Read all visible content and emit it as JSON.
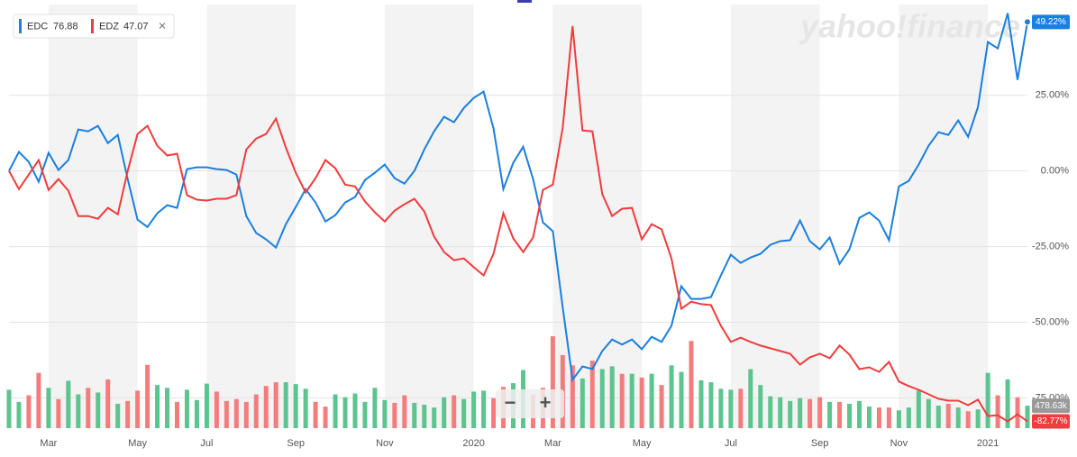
{
  "chart_data": {
    "type": "line",
    "watermark": "yahoo!finance",
    "categories": [
      null,
      null,
      null,
      null,
      "Mar",
      null,
      null,
      null,
      null,
      null,
      null,
      null,
      null,
      "May",
      null,
      null,
      null,
      null,
      null,
      null,
      "Jul",
      null,
      null,
      null,
      null,
      null,
      null,
      null,
      null,
      "Sep",
      null,
      null,
      null,
      null,
      null,
      null,
      null,
      null,
      "Nov",
      null,
      null,
      null,
      null,
      null,
      null,
      null,
      null,
      "2020",
      null,
      null,
      null,
      null,
      null,
      null,
      null,
      "Mar",
      null,
      null,
      null,
      null,
      null,
      null,
      null,
      null,
      "May",
      null,
      null,
      null,
      null,
      null,
      null,
      null,
      null,
      "Jul",
      null,
      null,
      null,
      null,
      null,
      null,
      null,
      null,
      "Sep",
      null,
      null,
      null,
      null,
      null,
      null,
      null,
      "Nov",
      null,
      null,
      null,
      null,
      null,
      null,
      null,
      null,
      "2021",
      null,
      null,
      null,
      null
    ],
    "series": [
      {
        "name": "EDC",
        "price": "76.88",
        "color": "#1a7fe0",
        "last_value_label": "49.22%",
        "values": [
          0,
          6.3,
          3.0,
          -3.6,
          6.0,
          0.3,
          3.6,
          13.7,
          13.1,
          14.9,
          9.2,
          11.9,
          -2.7,
          -16.1,
          -18.5,
          -14.0,
          -11.3,
          -12.2,
          0.6,
          1.2,
          1.2,
          0.6,
          0.3,
          -1.2,
          -14.9,
          -20.5,
          -22.6,
          -25.3,
          -17.6,
          -11.9,
          -6.0,
          -10.4,
          -16.7,
          -14.6,
          -10.4,
          -8.6,
          -3.0,
          -0.6,
          2.1,
          -2.4,
          -4.2,
          0,
          7.1,
          13.1,
          17.9,
          16.1,
          20.8,
          24.1,
          26.2,
          14.0,
          -6.0,
          2.7,
          8.0,
          -2.7,
          -17.0,
          -19.9,
          -45.2,
          -69.0,
          -64.6,
          -65.5,
          -59.5,
          -55.7,
          -57.4,
          -55.7,
          -58.9,
          -54.8,
          -56.5,
          -51.2,
          -38.1,
          -42.3,
          -42.3,
          -41.7,
          -34.5,
          -27.7,
          -30.4,
          -28.6,
          -27.4,
          -24.4,
          -23.2,
          -22.9,
          -16.4,
          -23.2,
          -25.9,
          -22.0,
          -30.7,
          -25.9,
          -15.5,
          -13.7,
          -16.4,
          -22.9,
          -5.1,
          -3.3,
          2.1,
          8.3,
          12.8,
          11.9,
          16.7,
          11.3,
          21.1,
          42.6,
          40.5,
          52.1,
          30.1,
          49.22
        ]
      },
      {
        "name": "EDZ",
        "price": "47.07",
        "color": "#f03c3c",
        "last_value_label": "-82.77%",
        "values": [
          0,
          -6.0,
          -1.2,
          3.6,
          -6.3,
          -2.7,
          -6.5,
          -14.9,
          -14.9,
          -15.8,
          -12.2,
          -14.3,
          0,
          12.2,
          14.9,
          8.3,
          5.1,
          5.7,
          -8.0,
          -9.5,
          -9.8,
          -9.2,
          -9.2,
          -8.0,
          7.1,
          10.7,
          12.2,
          17.3,
          7.7,
          -0.6,
          -7.1,
          -2.4,
          3.6,
          0.9,
          -4.5,
          -5.1,
          -10.1,
          -13.7,
          -16.7,
          -13.1,
          -11.0,
          -9.2,
          -13.4,
          -21.7,
          -26.8,
          -29.5,
          -28.9,
          -31.8,
          -34.5,
          -27.4,
          -14.0,
          -22.3,
          -26.8,
          -22.0,
          -6.3,
          -4.5,
          14.3,
          47.9,
          13.4,
          13.1,
          -7.7,
          -14.9,
          -12.5,
          -12.2,
          -22.6,
          -17.6,
          -19.3,
          -28.9,
          -45.5,
          -43.2,
          -44.0,
          -44.3,
          -51.2,
          -56.5,
          -55.1,
          -56.5,
          -57.7,
          -58.6,
          -59.5,
          -60.4,
          -64.0,
          -61.6,
          -60.4,
          -61.9,
          -57.7,
          -60.7,
          -65.5,
          -64.9,
          -66.4,
          -63.1,
          -69.6,
          -71.1,
          -72.3,
          -73.8,
          -75.3,
          -75.9,
          -75.9,
          -77.4,
          -75.6,
          -81.0,
          -80.7,
          -82.8,
          -80.4,
          -82.77
        ]
      }
    ],
    "volume": {
      "up_color": "#5cc48e",
      "down_color": "#f47c7c",
      "vlim": [
        0,
        2500
      ],
      "last_value_label": "478.63k",
      "values": [
        820,
        560,
        700,
        1180,
        860,
        620,
        1010,
        720,
        860,
        760,
        1040,
        520,
        580,
        800,
        1350,
        920,
        860,
        560,
        820,
        600,
        950,
        780,
        580,
        620,
        560,
        720,
        900,
        980,
        980,
        940,
        840,
        560,
        460,
        720,
        660,
        740,
        560,
        860,
        600,
        540,
        700,
        540,
        500,
        440,
        660,
        700,
        620,
        780,
        800,
        640,
        880,
        960,
        1240,
        720,
        860,
        1960,
        1560,
        1340,
        1060,
        1440,
        1260,
        1320,
        1160,
        1160,
        1080,
        1160,
        920,
        1340,
        1200,
        1860,
        1020,
        980,
        840,
        820,
        840,
        1260,
        920,
        680,
        660,
        580,
        640,
        620,
        660,
        560,
        560,
        520,
        580,
        460,
        440,
        440,
        380,
        440,
        800,
        620,
        480,
        520,
        440,
        360,
        400,
        1180,
        700,
        1040,
        660,
        478.63
      ]
    },
    "ylim": [
      -85,
      55
    ],
    "yticks": [
      {
        "value": 25,
        "label": "25.00%"
      },
      {
        "value": 0,
        "label": "0.00%"
      },
      {
        "value": -25,
        "label": "-25.00%"
      },
      {
        "value": -50,
        "label": "-50.00%"
      },
      {
        "value": -75,
        "label": "-75.00%"
      }
    ],
    "grid": true,
    "zoom_out": "−",
    "zoom_in": "+",
    "close": "×"
  }
}
